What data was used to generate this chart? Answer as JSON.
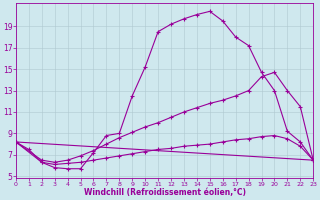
{
  "xlabel": "Windchill (Refroidissement éolien,°C)",
  "background_color": "#cfe8ee",
  "line_color": "#990099",
  "grid_color": "#b0c8d0",
  "curve1_x": [
    0,
    1,
    2,
    3,
    4,
    5,
    6,
    7,
    8,
    9,
    10,
    11,
    12,
    13,
    14,
    15,
    16,
    17,
    18,
    19,
    20,
    21,
    22,
    23
  ],
  "curve1_y": [
    8.2,
    7.5,
    6.3,
    5.8,
    5.7,
    5.7,
    7.2,
    8.8,
    9.0,
    12.5,
    15.2,
    18.5,
    19.2,
    19.7,
    20.1,
    20.4,
    19.5,
    18.0,
    17.2,
    14.7,
    13.0,
    9.2,
    8.2,
    6.5
  ],
  "curve2_x": [
    0,
    2,
    3,
    4,
    5,
    6,
    7,
    8,
    9,
    10,
    11,
    12,
    13,
    14,
    15,
    16,
    17,
    18,
    19,
    20,
    21,
    22,
    23
  ],
  "curve2_y": [
    8.2,
    6.5,
    6.3,
    6.5,
    6.9,
    7.4,
    8.0,
    8.6,
    9.1,
    9.6,
    10.0,
    10.5,
    11.0,
    11.4,
    11.8,
    12.1,
    12.5,
    13.0,
    14.3,
    14.7,
    13.0,
    11.5,
    6.5
  ],
  "curve3_x": [
    0,
    2,
    3,
    4,
    5,
    6,
    7,
    8,
    9,
    10,
    11,
    12,
    13,
    14,
    15,
    16,
    17,
    18,
    19,
    20,
    21,
    22,
    23
  ],
  "curve3_y": [
    8.2,
    6.3,
    6.1,
    6.2,
    6.3,
    6.5,
    6.7,
    6.9,
    7.1,
    7.3,
    7.5,
    7.6,
    7.8,
    7.9,
    8.0,
    8.2,
    8.4,
    8.5,
    8.7,
    8.8,
    8.5,
    7.8,
    6.5
  ],
  "curve4_x": [
    0,
    23
  ],
  "curve4_y": [
    8.2,
    6.5
  ],
  "xticks": [
    0,
    1,
    2,
    3,
    4,
    5,
    6,
    7,
    8,
    9,
    10,
    11,
    12,
    13,
    14,
    15,
    16,
    17,
    18,
    19,
    20,
    21,
    22,
    23
  ],
  "yticks": [
    5,
    7,
    9,
    11,
    13,
    15,
    17,
    19
  ],
  "xlim": [
    0,
    23
  ],
  "ylim": [
    4.8,
    21.2
  ]
}
